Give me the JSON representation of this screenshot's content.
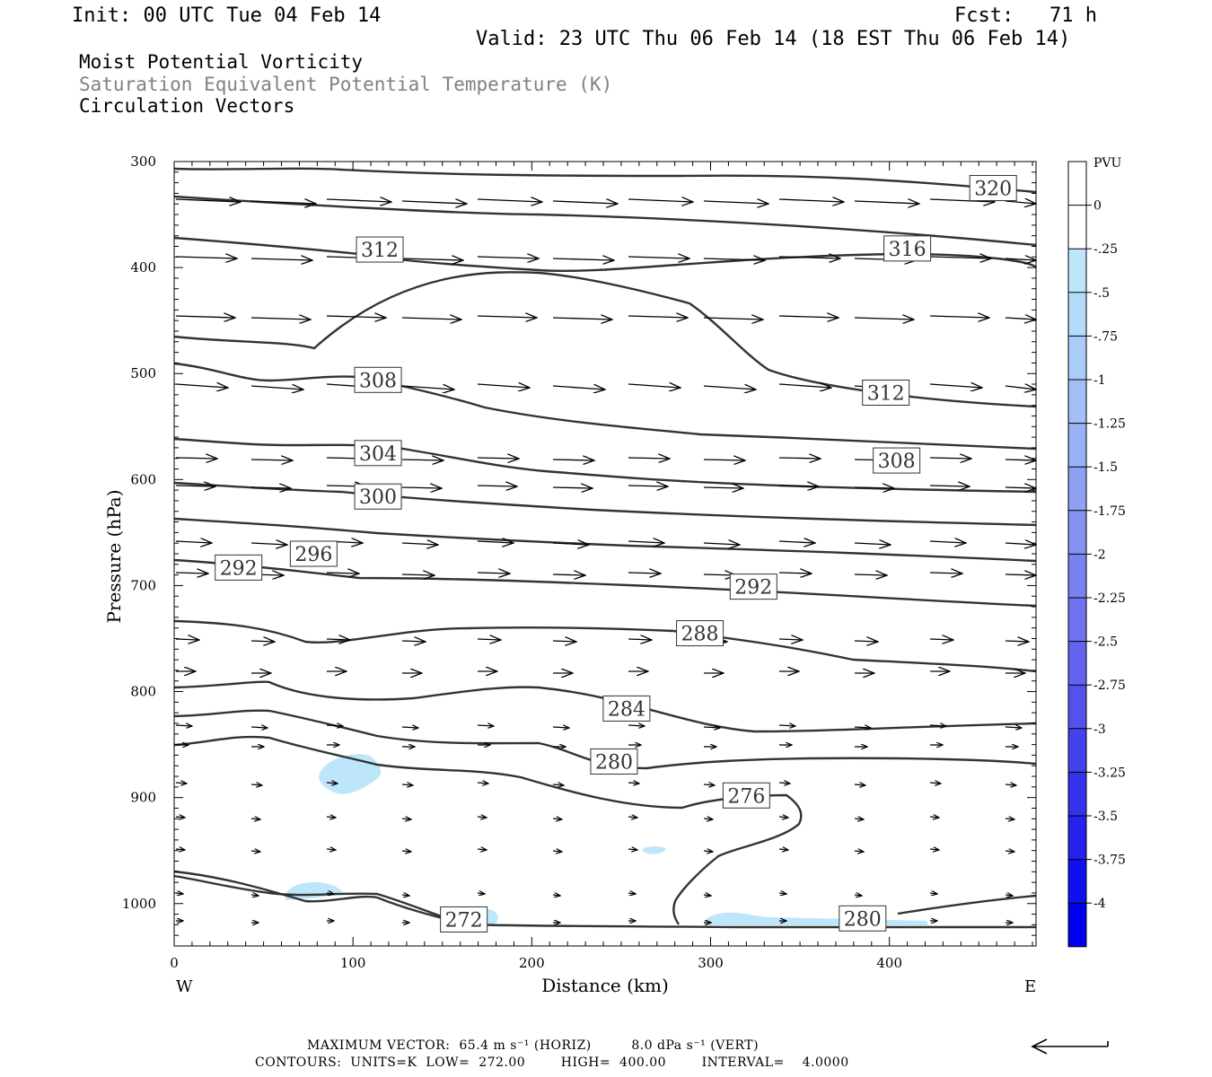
{
  "header": {
    "init": "Init: 00 UTC Tue 04 Feb 14",
    "fcst": "Fcst:   71 h",
    "valid": "Valid: 23 UTC Thu 06 Feb 14 (18 EST Thu 06 Feb 14)",
    "line1": "Moist Potential Vorticity",
    "line2": "Saturation Equivalent Potential Temperature (K)",
    "line3": "Circulation Vectors",
    "line2_color": "#808080"
  },
  "footer": {
    "max_vector": "MAXIMUM VECTOR:  65.4 m s⁻¹ (HORIZ)         8.0 dPa s⁻¹ (VERT)",
    "contours": "CONTOURS:  UNITS=K  LOW=  272.00        HIGH=  400.00        INTERVAL=    4.0000"
  },
  "chart_data": {
    "type": "cross-section",
    "xlabel": "Distance (km)",
    "ylabel": "Pressure (hPa)",
    "xlim": [
      0,
      482
    ],
    "ylim": [
      1040,
      300
    ],
    "x_ticks": [
      "0",
      "100",
      "200",
      "300",
      "400"
    ],
    "y_ticks": [
      "300",
      "400",
      "500",
      "600",
      "700",
      "800",
      "900",
      "1000"
    ],
    "west_label": "W",
    "east_label": "E",
    "colorbar": {
      "unit": "PVU",
      "labels": [
        "0",
        "-.25",
        "-.5",
        "-.75",
        "-1",
        "-1.25",
        "-1.5",
        "-1.75",
        "-2",
        "-2.25",
        "-2.5",
        "-2.75",
        "-3",
        "-3.25",
        "-3.5",
        "-3.75",
        "-4"
      ],
      "colors": [
        "#ffffff",
        "#ffffff",
        "#bde6fb",
        "#b3dcfb",
        "#a9ccf8",
        "#a3bff6",
        "#99b1f5",
        "#8fa1f3",
        "#8592f2",
        "#7a82f0",
        "#6f72ef",
        "#6462ee",
        "#5452ed",
        "#4442ec",
        "#3432ec",
        "#2422ec",
        "#1010ee",
        "#0000f0"
      ]
    },
    "contour_labels": [
      {
        "text": "320",
        "x": 458,
        "p": 325
      },
      {
        "text": "316",
        "x": 410,
        "p": 382
      },
      {
        "text": "312",
        "x": 115,
        "p": 383
      },
      {
        "text": "312",
        "x": 398,
        "p": 518
      },
      {
        "text": "308",
        "x": 114,
        "p": 506
      },
      {
        "text": "308",
        "x": 404,
        "p": 582
      },
      {
        "text": "304",
        "x": 114,
        "p": 575
      },
      {
        "text": "300",
        "x": 114,
        "p": 616
      },
      {
        "text": "296",
        "x": 78,
        "p": 670
      },
      {
        "text": "292",
        "x": 36,
        "p": 683
      },
      {
        "text": "292",
        "x": 324,
        "p": 701
      },
      {
        "text": "288",
        "x": 294,
        "p": 745
      },
      {
        "text": "284",
        "x": 253,
        "p": 816
      },
      {
        "text": "280",
        "x": 246,
        "p": 866
      },
      {
        "text": "276",
        "x": 320,
        "p": 898
      },
      {
        "text": "272",
        "x": 162,
        "p": 1015
      },
      {
        "text": "280",
        "x": 385,
        "p": 1014
      }
    ]
  }
}
